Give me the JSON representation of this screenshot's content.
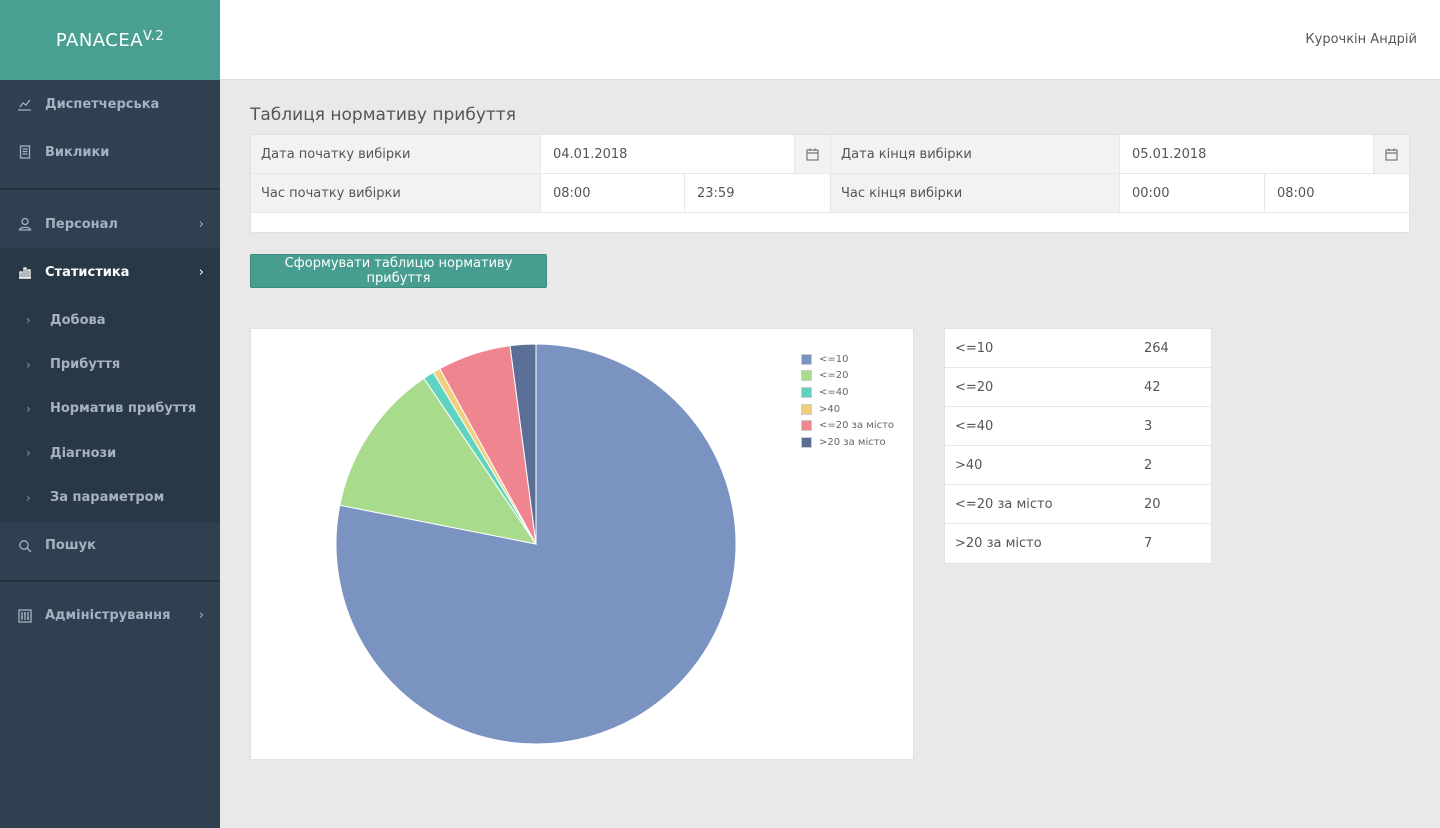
{
  "app": {
    "logo": "PANACEA",
    "version": "V.2"
  },
  "header": {
    "user": "Курочкін Андрій"
  },
  "sidebar": {
    "items": [
      {
        "label": "Диспетчерська",
        "icon": "line-chart-icon"
      },
      {
        "label": "Виклики",
        "icon": "document-icon"
      },
      {
        "label": "Персонал",
        "icon": "user-icon"
      },
      {
        "label": "Статистика",
        "icon": "bar-chart-icon"
      },
      {
        "label": "Пошук",
        "icon": "search-icon"
      },
      {
        "label": "Адміністрування",
        "icon": "sliders-icon"
      }
    ],
    "sub_items": [
      {
        "label": "Добова"
      },
      {
        "label": "Прибуття"
      },
      {
        "label": "Норматив прибуття"
      },
      {
        "label": "Діагнози"
      },
      {
        "label": "За параметром"
      }
    ]
  },
  "page": {
    "title": "Таблиця нормативу прибуття"
  },
  "filters": {
    "start_date_label": "Дата початку вибірки",
    "start_date": "04.01.2018",
    "end_date_label": "Дата кінця вибірки",
    "end_date": "05.01.2018",
    "start_time_label": "Час початку вибірки",
    "start_time_from": "08:00",
    "start_time_to": "23:59",
    "end_time_label": "Час кінця вибірки",
    "end_time_from": "00:00",
    "end_time_to": "08:00"
  },
  "actions": {
    "generate": "Сформувати таблицю нормативу прибуття"
  },
  "chart_data": {
    "type": "pie",
    "categories": [
      "<=10",
      "<=20",
      "<=40",
      ">40",
      "<=20 за місто",
      ">20 за місто"
    ],
    "values": [
      264,
      42,
      3,
      2,
      20,
      7
    ],
    "colors": [
      "#7b93c1",
      "#a8dc8c",
      "#5fd3c0",
      "#f0cf7e",
      "#ee858f",
      "#5b6f96"
    ],
    "legend_position": "top-right"
  },
  "table": {
    "rows": [
      {
        "label": "<=10",
        "value": "264"
      },
      {
        "label": "<=20",
        "value": "42"
      },
      {
        "label": "<=40",
        "value": "3"
      },
      {
        "label": ">40",
        "value": "2"
      },
      {
        "label": "<=20 за місто",
        "value": "20"
      },
      {
        "label": ">20 за місто",
        "value": "7"
      }
    ]
  }
}
